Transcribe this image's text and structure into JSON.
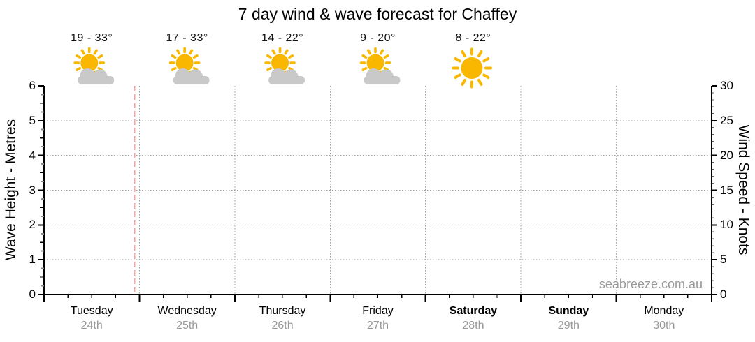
{
  "title": "7 day wind & wave forecast for Chaffey",
  "watermark": "seabreeze.com.au",
  "colors": {
    "sun": "#F9B700",
    "cloud": "#C9C9C9",
    "axis": "#000000",
    "grid_dotted": "#999999",
    "now_line": "#F2A7A7",
    "date_text": "#999999",
    "watermark_text": "#999999",
    "day_text": "#000000",
    "temp_text": "#111111",
    "minor_tick": "#8a8a8a"
  },
  "chart_data": {
    "type": "line",
    "title": "7 day wind & wave forecast for Chaffey",
    "series": [],
    "note": "Forecast chart area is empty (no wave or wind series plotted); a header row shows daily temperature ranges and weather icons for the first five days, and a dashed pink marker indicates the current time late on Tuesday.",
    "left_axis": {
      "label": "Wave Height - Metres",
      "min": 0,
      "max": 6,
      "major_step": 1,
      "minor_step": 0.25,
      "tick_labels": [
        "0",
        "1",
        "2",
        "3",
        "4",
        "5",
        "6"
      ],
      "gridlines": [
        1,
        2,
        3,
        4,
        5
      ]
    },
    "right_axis": {
      "label": "Wind Speed - Knots",
      "min": 0,
      "max": 30,
      "major_step": 5,
      "minor_step": 1,
      "tick_labels": [
        "0",
        "5",
        "10",
        "15",
        "20",
        "25",
        "30"
      ],
      "gridlines": [
        5,
        10,
        15,
        20,
        25
      ]
    },
    "x_axis": {
      "minor_ticks_per_day": 3,
      "days": [
        {
          "name": "Tuesday",
          "date": "24th",
          "weekend": false,
          "temp": "19 - 33°",
          "icon": "sun-cloud-icon"
        },
        {
          "name": "Wednesday",
          "date": "25th",
          "weekend": false,
          "temp": "17 - 33°",
          "icon": "sun-cloud-icon"
        },
        {
          "name": "Thursday",
          "date": "26th",
          "weekend": false,
          "temp": "14 - 22°",
          "icon": "sun-cloud-icon"
        },
        {
          "name": "Friday",
          "date": "27th",
          "weekend": false,
          "temp": "9 - 20°",
          "icon": "sun-cloud-icon"
        },
        {
          "name": "Saturday",
          "date": "28th",
          "weekend": true,
          "temp": "8 - 22°",
          "icon": "sun-icon"
        },
        {
          "name": "Sunday",
          "date": "29th",
          "weekend": true,
          "temp": "",
          "icon": ""
        },
        {
          "name": "Monday",
          "date": "30th",
          "weekend": false,
          "temp": "",
          "icon": ""
        }
      ]
    },
    "now_marker": {
      "day_index": 0,
      "day_fraction": 0.95
    },
    "grid": true,
    "legend": false
  }
}
